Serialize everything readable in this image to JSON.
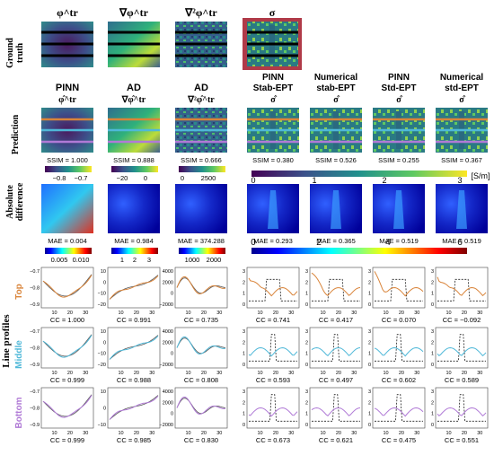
{
  "row_labels": {
    "ground_truth": [
      "Ground",
      "truth"
    ],
    "prediction": "Prediction",
    "absolute_difference": [
      "Absolute",
      "difference"
    ],
    "line_profiles": "Line profiles",
    "top": "Top",
    "middle": "Middle",
    "bottom": "Bottom"
  },
  "ground_truth_titles": [
    "φ^tr",
    "∇φ^tr",
    "∇²φ^tr",
    "σ"
  ],
  "column_headers": [
    {
      "line1": "PINN",
      "line2": "",
      "sym": "φ̂^tr"
    },
    {
      "line1": "AD",
      "line2": "",
      "sym": "∇φ̂^tr"
    },
    {
      "line1": "AD",
      "line2": "",
      "sym": "∇²φ̂^tr"
    },
    {
      "line1": "PINN",
      "line2": "Stab-EPT",
      "sym": "σ̂"
    },
    {
      "line1": "Numerical",
      "line2": "stab-EPT",
      "sym": "σ̂"
    },
    {
      "line1": "PINN",
      "line2": "Std-EPT",
      "sym": "σ̂"
    },
    {
      "line1": "Numerical",
      "line2": "std-EPT",
      "sym": "σ̂"
    }
  ],
  "ssim": [
    "SSIM = 1.000",
    "SSIM = 0.888",
    "SSIM = 0.666",
    "SSIM = 0.380",
    "SSIM = 0.526",
    "SSIM = 0.255",
    "SSIM = 0.367"
  ],
  "mae": [
    "MAE = 0.004",
    "MAE = 0.984",
    "MAE = 374.288",
    "MAE = 0.293",
    "MAE = 0.365",
    "MAE = 0.519",
    "MAE = 0.519"
  ],
  "colorbars": {
    "pred_1": [
      "−0.8",
      "−0.7"
    ],
    "pred_2": [
      "−20",
      "0"
    ],
    "pred_3": [
      "0",
      "2500"
    ],
    "pred_sigma": [
      "0",
      "1",
      "2",
      "3"
    ],
    "pred_sigma_unit": "[S/m]",
    "diff_1": [
      "0.005",
      "0.010"
    ],
    "diff_2": [
      "1",
      "2",
      "3"
    ],
    "diff_3": [
      "1000",
      "2000"
    ],
    "diff_sigma": [
      "0",
      "2",
      "4",
      "6"
    ]
  },
  "profile_axes": {
    "col1_y": [
      "−0.7",
      "−0.8",
      "−0.9"
    ],
    "col2_top_y": [
      "10",
      "0",
      "−10",
      "−20"
    ],
    "col2_mid_y": [
      "10",
      "0",
      "−10",
      "−20"
    ],
    "col2_bot_y": [
      "10",
      "0",
      "−10"
    ],
    "col3_y": [
      "4000",
      "2000",
      "0",
      "−2000"
    ],
    "sig_y": [
      "3",
      "2",
      "1",
      "0"
    ],
    "x_ticks": [
      "10",
      "20",
      "30"
    ]
  },
  "cc": [
    [
      "CC = 1.000",
      "CC = 0.991",
      "CC = 0.735",
      "CC = 0.741",
      "CC = 0.417",
      "CC = 0.070",
      "CC = −0.092"
    ],
    [
      "CC = 0.999",
      "CC = 0.988",
      "CC = 0.808",
      "CC = 0.593",
      "CC = 0.497",
      "CC = 0.602",
      "CC = 0.589"
    ],
    [
      "CC = 0.999",
      "CC = 0.985",
      "CC = 0.830",
      "CC = 0.673",
      "CC = 0.621",
      "CC = 0.475",
      "CC = 0.551"
    ]
  ],
  "colors": {
    "top": "#d9843a",
    "middle": "#4fb8d8",
    "bottom": "#b07ad6",
    "frame": "#b03a48"
  }
}
